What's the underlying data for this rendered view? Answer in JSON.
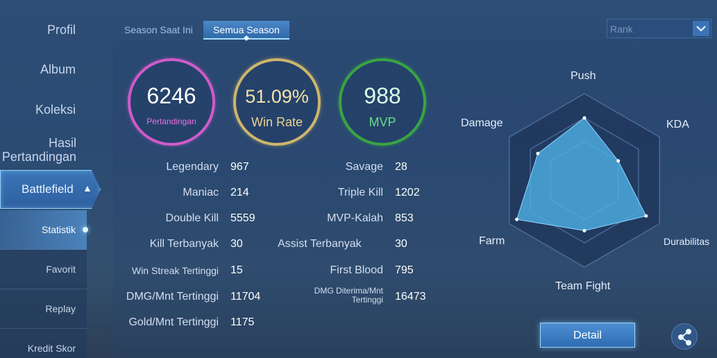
{
  "sidebar": {
    "items": [
      {
        "label": "Profil"
      },
      {
        "label": "Album"
      },
      {
        "label": "Koleksi"
      },
      {
        "label": "Hasil Pertandingan"
      }
    ],
    "battlefield": {
      "label": "Battlefield"
    },
    "sub_items": [
      {
        "label": "Statistik"
      },
      {
        "label": "Favorit"
      },
      {
        "label": "Replay"
      },
      {
        "label": "Kredit Skor"
      }
    ]
  },
  "tabs": [
    {
      "label": "Season Saat Ini"
    },
    {
      "label": "Semua Season"
    }
  ],
  "mode_select": {
    "value": "Rank"
  },
  "summary": {
    "matches": {
      "value": "6246",
      "label": "Pertandingan"
    },
    "win_rate": {
      "value": "51.09%",
      "label": "Win Rate"
    },
    "mvp": {
      "value": "988",
      "label": "MVP"
    }
  },
  "stats_left": [
    {
      "label": "Legendary",
      "value": "967"
    },
    {
      "label": "Maniac",
      "value": "214"
    },
    {
      "label": "Double Kill",
      "value": "5559"
    },
    {
      "label": "Kill Terbanyak",
      "value": "30"
    },
    {
      "label": "Win Streak Tertinggi",
      "value": "15"
    },
    {
      "label": "DMG/Mnt Tertinggi",
      "value": "11704"
    },
    {
      "label": "Gold/Mnt Tertinggi",
      "value": "1175"
    }
  ],
  "stats_right": [
    {
      "label": "Savage",
      "value": "28"
    },
    {
      "label": "Triple Kill",
      "value": "1202"
    },
    {
      "label": "MVP-Kalah",
      "value": "853"
    },
    {
      "label": "Assist Terbanyak",
      "value": "30"
    },
    {
      "label": "First Blood",
      "value": "795"
    },
    {
      "label": "DMG Diterima/Mnt Tertinggi",
      "value": "16473"
    }
  ],
  "radar": {
    "labels": [
      "Push",
      "KDA",
      "Durabilitas",
      "Team Fight",
      "Farm",
      "Damage"
    ],
    "values": [
      0.72,
      0.45,
      0.82,
      0.58,
      0.9,
      0.62
    ]
  },
  "actions": {
    "detail_label": "Detail"
  },
  "icons": {
    "share": "share-icon",
    "chevron": "chevron-up-icon",
    "dropdown": "chevron-down-icon"
  },
  "colors": {
    "matches_ring": "#cf5bc9",
    "winrate_ring": "#cdb66b",
    "mvp_ring": "#3aa442",
    "radar_fill": "#4fb3e8"
  }
}
